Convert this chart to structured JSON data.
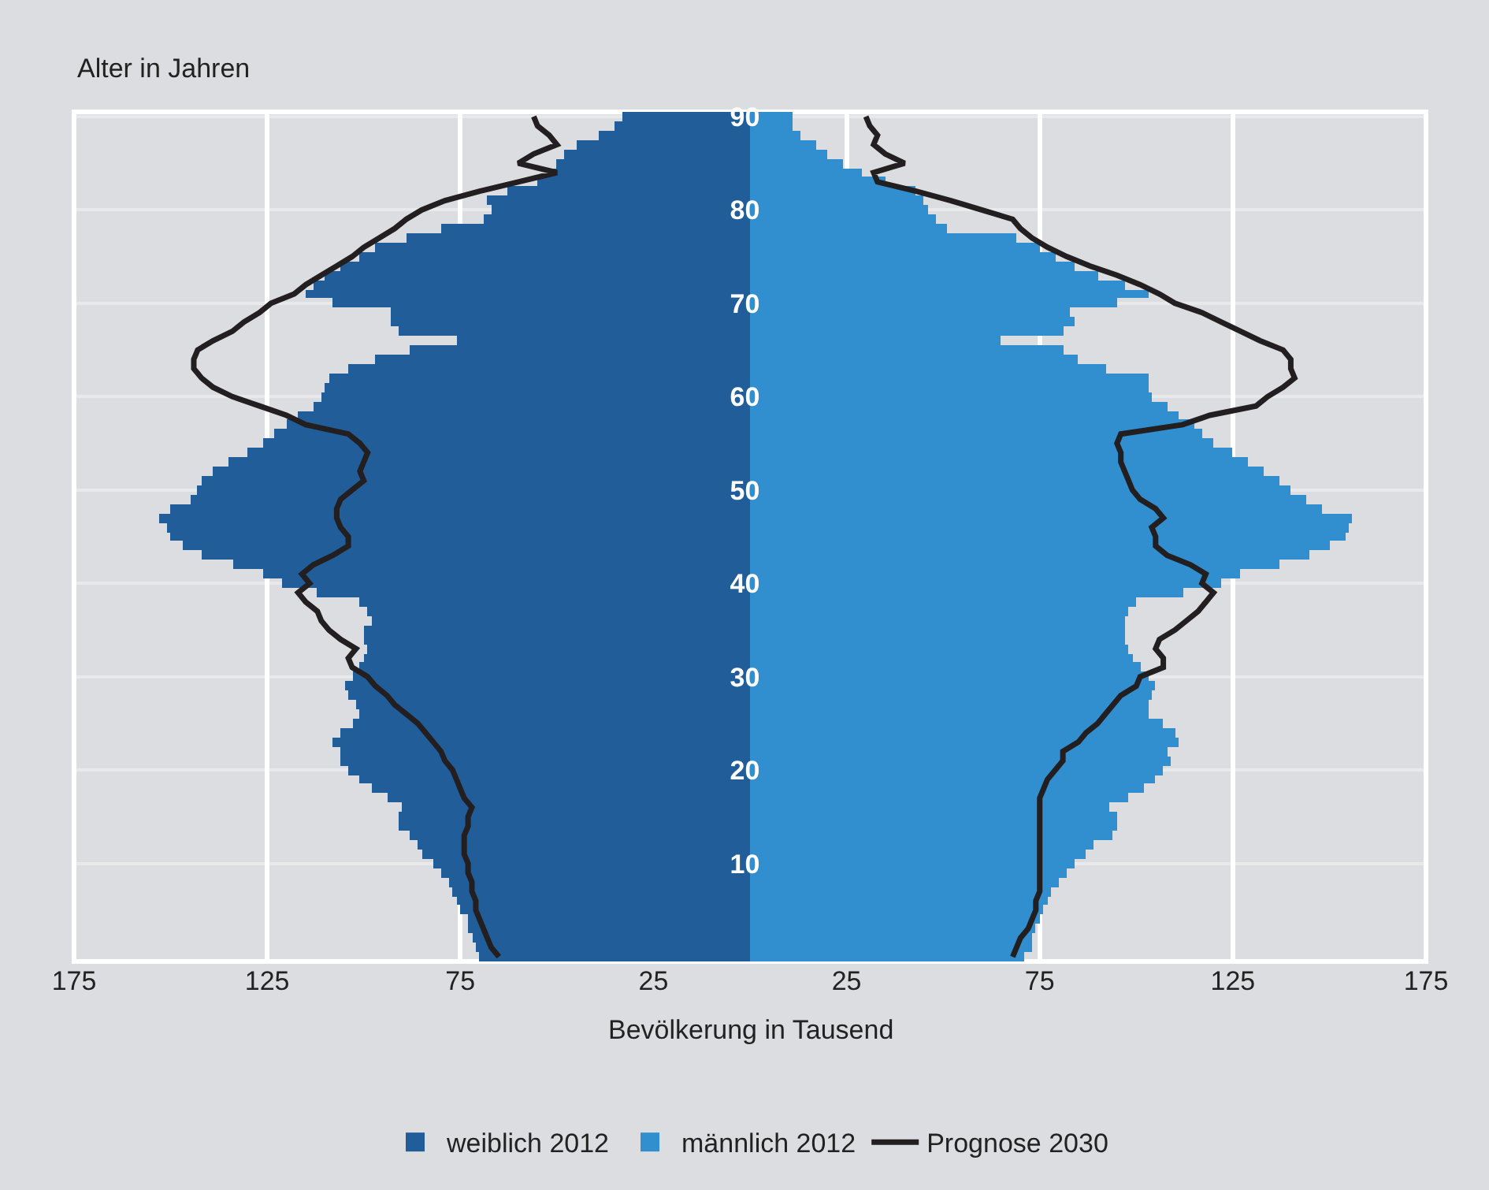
{
  "chart_data": [
    {
      "type": "bar",
      "orientation": "horizontal",
      "xlabel": "Bevölkerung in Tausend",
      "ylabel": "Alter in Jahren",
      "x": [
        0,
        1,
        2,
        3,
        4,
        5,
        6,
        7,
        8,
        9,
        10,
        11,
        12,
        13,
        14,
        15,
        16,
        17,
        18,
        19,
        20,
        21,
        22,
        23,
        24,
        25,
        26,
        27,
        28,
        29,
        30,
        31,
        32,
        33,
        34,
        35,
        36,
        37,
        38,
        39,
        40,
        41,
        42,
        43,
        44,
        45,
        46,
        47,
        48,
        49,
        50,
        51,
        52,
        53,
        54,
        55,
        56,
        57,
        58,
        59,
        60,
        61,
        62,
        63,
        64,
        65,
        66,
        67,
        68,
        69,
        70,
        71,
        72,
        73,
        74,
        75,
        76,
        77,
        78,
        79,
        80,
        81,
        82,
        83,
        84,
        85,
        86,
        87,
        88,
        89,
        90
      ],
      "series": [
        {
          "name": "weiblich 2012",
          "color": "#215d98",
          "values": [
            70,
            71,
            72,
            73,
            73,
            75,
            76,
            77,
            78,
            80,
            82,
            85,
            86,
            88,
            91,
            91,
            90,
            94,
            98,
            101,
            104,
            106,
            106,
            108,
            106,
            103,
            101,
            102,
            104,
            105,
            103,
            101,
            100,
            99,
            100,
            100,
            98,
            99,
            101,
            112,
            121,
            126,
            134,
            142,
            147,
            150,
            151,
            153,
            150,
            145,
            143,
            142,
            139,
            135,
            130,
            126,
            123,
            120,
            117,
            113,
            111,
            110,
            109,
            104,
            97,
            88,
            76,
            91,
            93,
            93,
            108,
            115,
            113,
            110,
            106,
            101,
            97,
            89,
            80,
            69,
            67,
            68,
            63,
            55,
            51,
            50,
            48,
            45,
            39,
            35,
            33
          ]
        },
        {
          "name": "Prognose 2030",
          "type": "line",
          "color": "#231f20",
          "values": [
            65,
            67,
            68,
            69,
            70,
            71,
            71,
            72,
            72,
            73,
            73,
            74,
            74,
            74,
            73,
            73,
            72,
            74,
            75,
            76,
            77,
            79,
            80,
            82,
            84,
            86,
            89,
            92,
            94,
            97,
            99,
            103,
            104,
            102,
            106,
            109,
            111,
            112,
            115,
            117,
            114,
            116,
            113,
            108,
            104,
            104,
            106,
            107,
            107,
            106,
            103,
            100,
            101,
            100,
            99,
            101,
            104,
            115,
            120,
            127,
            134,
            139,
            142,
            144,
            144,
            143,
            139,
            134,
            131,
            127,
            124,
            118,
            115,
            111,
            107,
            103,
            100,
            96,
            92,
            89,
            85,
            79,
            70,
            60,
            50,
            60,
            56,
            50,
            52,
            55,
            56
          ]
        }
      ],
      "xlim": [
        175,
        0
      ],
      "xticks": [
        175,
        125,
        75,
        25
      ],
      "ylim": [
        -0.5,
        90.5
      ],
      "yticks": [
        10,
        20,
        30,
        40,
        50,
        60,
        70,
        80,
        90
      ],
      "tick_labels": "x",
      "grid": true,
      "legend": "bottom"
    },
    {
      "type": "bar",
      "orientation": "horizontal",
      "x": [
        0,
        1,
        2,
        3,
        4,
        5,
        6,
        7,
        8,
        9,
        10,
        11,
        12,
        13,
        14,
        15,
        16,
        17,
        18,
        19,
        20,
        21,
        22,
        23,
        24,
        25,
        26,
        27,
        28,
        29,
        30,
        31,
        32,
        33,
        34,
        35,
        36,
        37,
        38,
        39,
        40,
        41,
        42,
        43,
        44,
        45,
        46,
        47,
        48,
        49,
        50,
        51,
        52,
        53,
        54,
        55,
        56,
        57,
        58,
        59,
        60,
        61,
        62,
        63,
        64,
        65,
        66,
        67,
        68,
        69,
        70,
        71,
        72,
        73,
        74,
        75,
        76,
        77,
        78,
        79,
        80,
        81,
        82,
        83,
        84,
        85,
        86,
        87,
        88,
        89,
        90
      ],
      "series": [
        {
          "name": "männlich 2012",
          "color": "#318ecf",
          "values": [
            71,
            73,
            73,
            74,
            75,
            76,
            77,
            78,
            80,
            82,
            84,
            87,
            89,
            94,
            95,
            95,
            93,
            98,
            102,
            105,
            107,
            109,
            108,
            111,
            110,
            107,
            103,
            103,
            104,
            105,
            103,
            101,
            99,
            98,
            97,
            97,
            97,
            98,
            100,
            112,
            122,
            127,
            137,
            145,
            150,
            154,
            155,
            156,
            148,
            144,
            140,
            137,
            133,
            129,
            125,
            120,
            117,
            115,
            111,
            108,
            104,
            103,
            103,
            92,
            85,
            81,
            65,
            81,
            84,
            83,
            95,
            103,
            97,
            90,
            84,
            79,
            75,
            69,
            51,
            48,
            46,
            45,
            43,
            35,
            29,
            24,
            20,
            17,
            13,
            11,
            11
          ]
        },
        {
          "type": "line",
          "color": "#231f20",
          "values": [
            68,
            69,
            70,
            72,
            73,
            74,
            74,
            75,
            75,
            75,
            75,
            75,
            75,
            75,
            75,
            75,
            75,
            75,
            76,
            77,
            79,
            81,
            81,
            85,
            87,
            90,
            92,
            94,
            96,
            100,
            101,
            107,
            107,
            105,
            106,
            110,
            113,
            116,
            118,
            120,
            117,
            118,
            114,
            108,
            105,
            105,
            104,
            107,
            105,
            101,
            99,
            98,
            97,
            96,
            96,
            95,
            96,
            112,
            119,
            131,
            134,
            138,
            141,
            140,
            140,
            138,
            132,
            127,
            122,
            117,
            110,
            106,
            101,
            95,
            88,
            82,
            77,
            73,
            70,
            68,
            60,
            52,
            43,
            33,
            32,
            40,
            35,
            32,
            33,
            31,
            30
          ]
        }
      ],
      "xlim": [
        0,
        175
      ],
      "xticks": [
        25,
        75,
        125,
        175
      ],
      "ylim": [
        -0.5,
        90.5
      ],
      "yticks": [
        10,
        20,
        30,
        40,
        50,
        60,
        70,
        80,
        90
      ],
      "grid": true,
      "legend": "bottom"
    }
  ]
}
